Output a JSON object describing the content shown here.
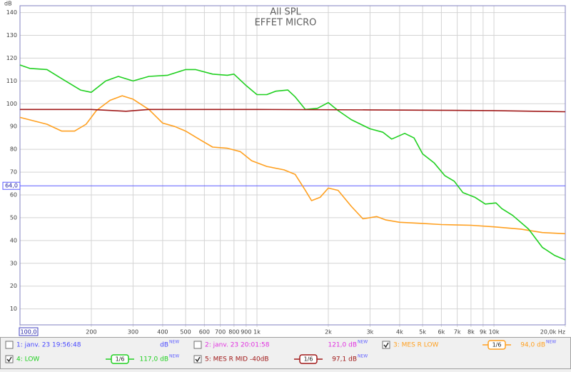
{
  "chart_data": {
    "type": "line",
    "title": "All SPL",
    "subtitle": "EFFET MICRO",
    "y_label": "dB",
    "xscale": "log",
    "xlim": [
      100,
      20000
    ],
    "ylim": [
      3,
      143
    ],
    "grid": true,
    "xticks": [
      {
        "value": 100,
        "label": "100,0"
      },
      200,
      300,
      400,
      500,
      600,
      700,
      800,
      900,
      {
        "value": 1000,
        "label": "1k"
      },
      {
        "value": 2000,
        "label": "2k"
      },
      {
        "value": 3000,
        "label": "3k"
      },
      {
        "value": 4000,
        "label": "4k"
      },
      {
        "value": 5000,
        "label": "5k"
      },
      {
        "value": 6000,
        "label": "6k"
      },
      {
        "value": 7000,
        "label": "7k"
      },
      {
        "value": 8000,
        "label": "8k"
      },
      {
        "value": 9000,
        "label": "9k"
      },
      {
        "value": 10000,
        "label": "10k"
      },
      {
        "value": 20000,
        "label": "20,0k Hz"
      }
    ],
    "yticks": [
      10,
      20,
      30,
      40,
      50,
      60,
      70,
      80,
      90,
      100,
      110,
      120,
      130,
      140
    ],
    "cursor": {
      "value": 64,
      "label": "64,0",
      "color": "#5a5aff"
    },
    "series": [
      {
        "name": "3: MES R LOW",
        "color": "#ffa020",
        "checked": true,
        "smoothing": "1/6",
        "level": "94,0 dB",
        "x": [
          100,
          130,
          150,
          170,
          190,
          210,
          240,
          270,
          300,
          350,
          400,
          450,
          500,
          580,
          650,
          750,
          850,
          950,
          1100,
          1300,
          1450,
          1600,
          1700,
          1850,
          2000,
          2200,
          2500,
          2800,
          3200,
          3500,
          4000,
          5000,
          6000,
          8000,
          10000,
          13000,
          16000,
          20000
        ],
        "values": [
          94,
          91,
          88,
          88,
          91,
          97,
          101.5,
          103.5,
          102,
          97.5,
          91.5,
          90,
          88,
          84,
          81,
          80.5,
          79,
          75,
          72.5,
          71,
          69,
          62,
          57.5,
          59,
          63,
          62,
          55,
          49.5,
          50.5,
          49,
          48,
          47.5,
          47,
          46.7,
          46,
          45,
          43.5,
          43
        ]
      },
      {
        "name": "4: LOW",
        "color": "#20d020",
        "checked": true,
        "smoothing": "1/6",
        "level": "117,0 dB",
        "x": [
          100,
          110,
          130,
          150,
          180,
          200,
          230,
          260,
          300,
          350,
          420,
          500,
          550,
          650,
          750,
          800,
          900,
          1000,
          1100,
          1200,
          1350,
          1450,
          1600,
          1800,
          2000,
          2200,
          2500,
          3000,
          3400,
          3700,
          4200,
          4600,
          5000,
          5600,
          6200,
          6800,
          7400,
          8300,
          9200,
          10200,
          10800,
          12000,
          14000,
          16000,
          18000,
          20000
        ],
        "values": [
          117,
          115.5,
          115,
          111,
          106,
          105,
          110,
          112,
          110,
          112,
          112.5,
          115,
          115,
          113,
          112.5,
          113,
          108,
          104,
          104,
          105.5,
          106,
          103,
          97.5,
          98,
          100.5,
          97,
          93,
          89,
          87.5,
          84.5,
          87,
          85,
          78,
          74,
          68.5,
          66,
          61,
          59,
          56,
          56.5,
          54,
          51,
          45,
          37,
          33.5,
          31.5
        ]
      },
      {
        "name": "5: MES R MID -40dB",
        "color": "#a01818",
        "checked": true,
        "smoothing": "1/6",
        "level": "97,1 dB",
        "x": [
          100,
          200,
          280,
          350,
          1000,
          3000,
          10000,
          20000
        ],
        "values": [
          97.5,
          97.5,
          96.7,
          97.5,
          97.5,
          97.3,
          97,
          96.5
        ]
      }
    ],
    "hidden_traces": [
      {
        "name": "1: janv. 23 19:56:48",
        "color": "#4848ff",
        "checked": false,
        "level": "dB"
      },
      {
        "name": "2: janv. 23 20:01:58",
        "color": "#e030e0",
        "checked": false,
        "level": "121,0 dB"
      }
    ],
    "new_tag": "NEW"
  }
}
